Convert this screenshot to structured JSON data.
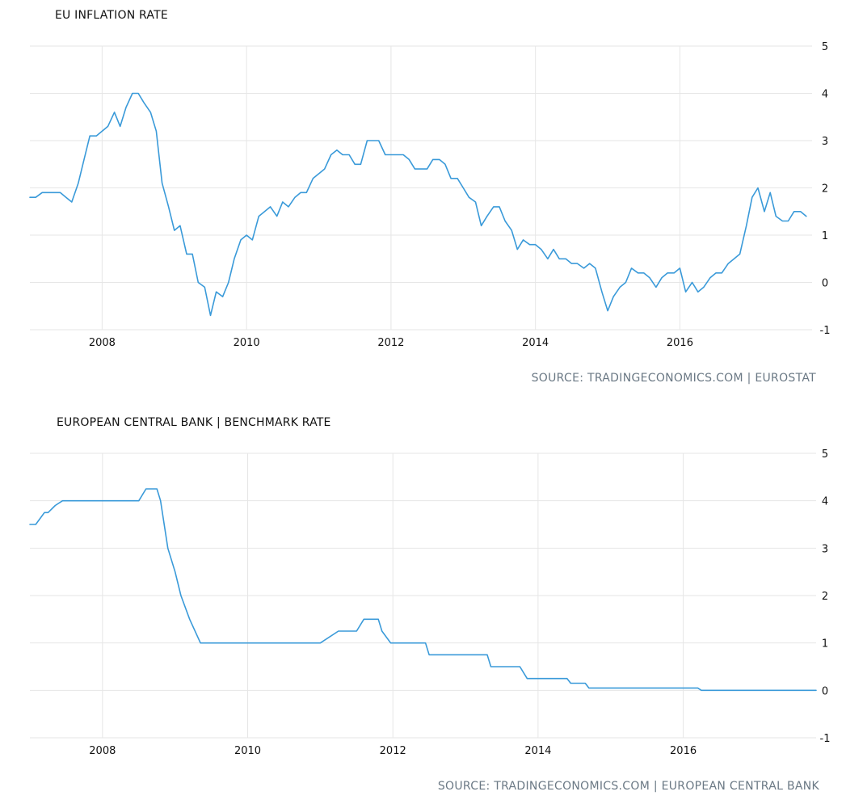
{
  "charts": [
    {
      "title": "EU INFLATION RATE",
      "source": "SOURCE: TRADINGECONOMICS.COM | EUROSTAT",
      "color": "#3a9ad9"
    },
    {
      "title": "EUROPEAN CENTRAL BANK | BENCHMARK RATE",
      "source": "SOURCE: TRADINGECONOMICS.COM  |  EUROPEAN CENTRAL BANK",
      "color": "#3a9ad9"
    }
  ],
  "chart_data": [
    {
      "type": "line",
      "title": "EU INFLATION RATE",
      "xlabel": "",
      "ylabel": "",
      "xlim": [
        2007.0,
        2017.83
      ],
      "ylim": [
        -1,
        5
      ],
      "y_ticks": [
        5,
        4,
        3,
        2,
        1,
        0,
        -1
      ],
      "x_ticks": [
        2008,
        2010,
        2012,
        2014,
        2016
      ],
      "x_tick_labels": [
        "2008",
        "2010",
        "2012",
        "2014",
        "2016"
      ],
      "series": [
        {
          "name": "EU Inflation Rate",
          "x": [
            2007.0,
            2007.08,
            2007.17,
            2007.25,
            2007.33,
            2007.42,
            2007.5,
            2007.58,
            2007.67,
            2007.75,
            2007.83,
            2007.92,
            2008.0,
            2008.08,
            2008.17,
            2008.25,
            2008.33,
            2008.42,
            2008.5,
            2008.58,
            2008.67,
            2008.75,
            2008.83,
            2008.92,
            2009.0,
            2009.08,
            2009.17,
            2009.25,
            2009.33,
            2009.42,
            2009.5,
            2009.58,
            2009.67,
            2009.75,
            2009.83,
            2009.92,
            2010.0,
            2010.08,
            2010.17,
            2010.25,
            2010.33,
            2010.42,
            2010.5,
            2010.58,
            2010.67,
            2010.75,
            2010.83,
            2010.92,
            2011.0,
            2011.08,
            2011.17,
            2011.25,
            2011.33,
            2011.42,
            2011.5,
            2011.58,
            2011.67,
            2011.75,
            2011.83,
            2011.92,
            2012.0,
            2012.08,
            2012.17,
            2012.25,
            2012.33,
            2012.42,
            2012.5,
            2012.58,
            2012.67,
            2012.75,
            2012.83,
            2012.92,
            2013.0,
            2013.08,
            2013.17,
            2013.25,
            2013.33,
            2013.42,
            2013.5,
            2013.58,
            2013.67,
            2013.75,
            2013.83,
            2013.92,
            2014.0,
            2014.08,
            2014.17,
            2014.25,
            2014.33,
            2014.42,
            2014.5,
            2014.58,
            2014.67,
            2014.75,
            2014.83,
            2014.92,
            2015.0,
            2015.08,
            2015.17,
            2015.25,
            2015.33,
            2015.42,
            2015.5,
            2015.58,
            2015.67,
            2015.75,
            2015.83,
            2015.92,
            2016.0,
            2016.08,
            2016.17,
            2016.25,
            2016.33,
            2016.42,
            2016.5,
            2016.58,
            2016.67,
            2016.75,
            2016.83,
            2016.92,
            2017.0,
            2017.08,
            2017.17,
            2017.25,
            2017.33,
            2017.42,
            2017.5,
            2017.58,
            2017.67,
            2017.75
          ],
          "values": [
            1.8,
            1.8,
            1.9,
            1.9,
            1.9,
            1.9,
            1.8,
            1.7,
            2.1,
            2.6,
            3.1,
            3.1,
            3.2,
            3.3,
            3.6,
            3.3,
            3.7,
            4.0,
            4.0,
            3.8,
            3.6,
            3.2,
            2.1,
            1.6,
            1.1,
            1.2,
            0.6,
            0.6,
            0.0,
            -0.1,
            -0.7,
            -0.2,
            -0.3,
            0.0,
            0.5,
            0.9,
            1.0,
            0.9,
            1.4,
            1.5,
            1.6,
            1.4,
            1.7,
            1.6,
            1.8,
            1.9,
            1.9,
            2.2,
            2.3,
            2.4,
            2.7,
            2.8,
            2.7,
            2.7,
            2.5,
            2.5,
            3.0,
            3.0,
            3.0,
            2.7,
            2.7,
            2.7,
            2.7,
            2.6,
            2.4,
            2.4,
            2.4,
            2.6,
            2.6,
            2.5,
            2.2,
            2.2,
            2.0,
            1.8,
            1.7,
            1.2,
            1.4,
            1.6,
            1.6,
            1.3,
            1.1,
            0.7,
            0.9,
            0.8,
            0.8,
            0.7,
            0.5,
            0.7,
            0.5,
            0.5,
            0.4,
            0.4,
            0.3,
            0.4,
            0.3,
            -0.2,
            -0.6,
            -0.3,
            -0.1,
            0.0,
            0.3,
            0.2,
            0.2,
            0.1,
            -0.1,
            0.1,
            0.2,
            0.2,
            0.3,
            -0.2,
            0.0,
            -0.2,
            -0.1,
            0.1,
            0.2,
            0.2,
            0.4,
            0.5,
            0.6,
            1.2,
            1.8,
            2.0,
            1.5,
            1.9,
            1.4,
            1.3,
            1.3,
            1.5,
            1.5,
            1.4
          ]
        }
      ]
    },
    {
      "type": "line",
      "title": "EUROPEAN CENTRAL BANK | BENCHMARK RATE",
      "xlabel": "",
      "ylabel": "",
      "xlim": [
        2007.0,
        2017.83
      ],
      "ylim": [
        -1,
        5
      ],
      "y_ticks": [
        5,
        4,
        3,
        2,
        1,
        0,
        -1
      ],
      "x_ticks": [
        2008,
        2010,
        2012,
        2014,
        2016
      ],
      "x_tick_labels": [
        "2008",
        "2010",
        "2012",
        "2014",
        "2016"
      ],
      "series": [
        {
          "name": "ECB Benchmark Rate",
          "x": [
            2007.0,
            2007.08,
            2007.2,
            2007.25,
            2007.35,
            2007.45,
            2007.5,
            2008.0,
            2008.5,
            2008.6,
            2008.65,
            2008.75,
            2008.8,
            2008.9,
            2009.0,
            2009.08,
            2009.2,
            2009.35,
            2009.45,
            2010.0,
            2011.0,
            2011.25,
            2011.3,
            2011.5,
            2011.6,
            2011.8,
            2011.85,
            2011.97,
            2012.0,
            2012.45,
            2012.5,
            2013.3,
            2013.35,
            2013.75,
            2013.85,
            2014.4,
            2014.45,
            2014.65,
            2014.7,
            2016.2,
            2016.25,
            2017.83
          ],
          "values": [
            3.5,
            3.5,
            3.75,
            3.75,
            3.9,
            4.0,
            4.0,
            4.0,
            4.0,
            4.25,
            4.25,
            4.25,
            4.0,
            3.0,
            2.5,
            2.0,
            1.5,
            1.0,
            1.0,
            1.0,
            1.0,
            1.25,
            1.25,
            1.25,
            1.5,
            1.5,
            1.25,
            1.0,
            1.0,
            1.0,
            0.75,
            0.75,
            0.5,
            0.5,
            0.25,
            0.25,
            0.15,
            0.15,
            0.05,
            0.05,
            0.0,
            0.0
          ]
        }
      ]
    }
  ]
}
